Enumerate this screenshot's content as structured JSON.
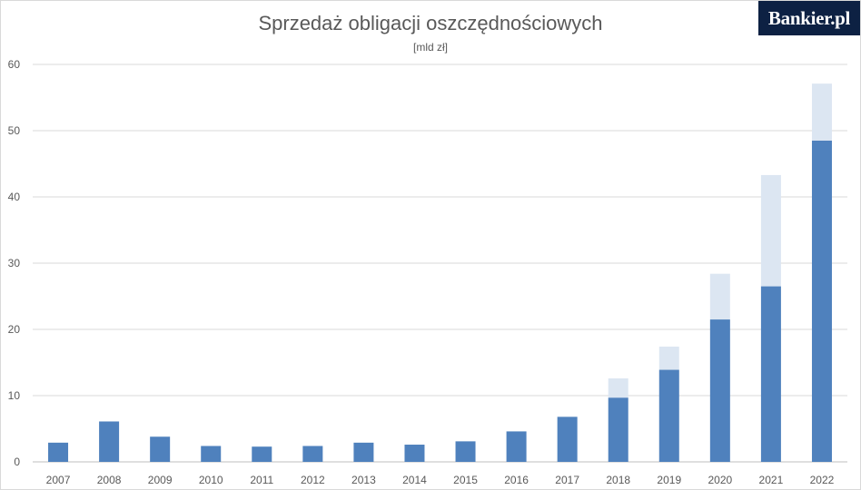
{
  "chart_data": {
    "type": "bar",
    "stacked": true,
    "title": "Sprzedaż obligacji oszczędnościowych",
    "subtitle": "[mld zł]",
    "xlabel": "",
    "ylabel": "",
    "ylim": [
      0,
      60
    ],
    "yticks": [
      0,
      10,
      20,
      30,
      40,
      50,
      60
    ],
    "grid": true,
    "legend": "none",
    "categories": [
      "2007",
      "2008",
      "2009",
      "2010",
      "2011",
      "2012",
      "2013",
      "2014",
      "2015",
      "2016",
      "2017",
      "2018",
      "2019",
      "2020",
      "2021",
      "2022"
    ],
    "series": [
      {
        "color": "#4f81bd",
        "values": [
          2.9,
          6.1,
          3.8,
          2.4,
          2.3,
          2.4,
          2.9,
          2.6,
          3.1,
          4.6,
          6.8,
          9.7,
          13.9,
          21.5,
          26.5,
          48.5
        ]
      },
      {
        "color": "#dce6f2",
        "values": [
          0,
          0,
          0,
          0,
          0,
          0,
          0,
          0,
          0,
          0,
          0,
          2.9,
          3.5,
          6.9,
          16.8,
          8.6
        ]
      }
    ]
  },
  "logo": {
    "text": "Bankier.pl"
  }
}
